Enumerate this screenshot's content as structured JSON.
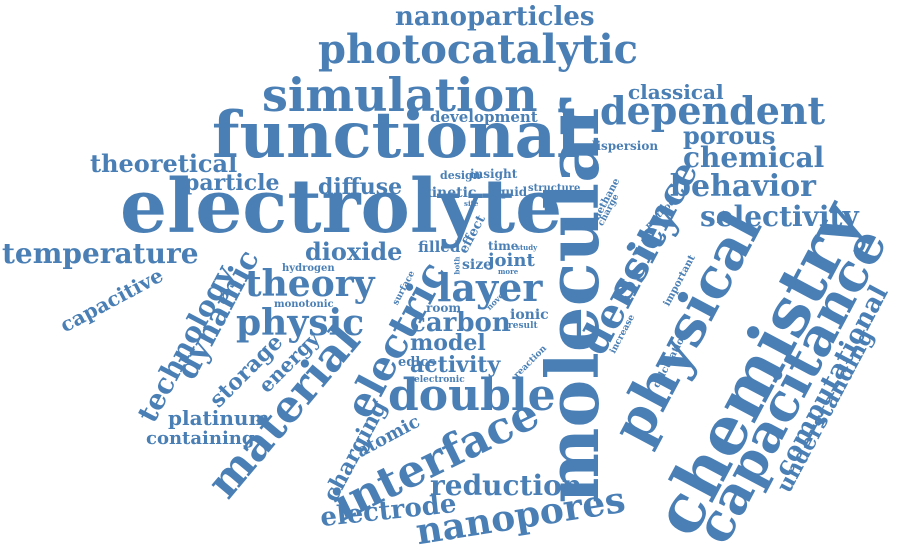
{
  "palette": {
    "word_color": "#4A7FB5",
    "background": "#ffffff"
  },
  "words": [
    {
      "id": "electrolyte",
      "text": "electrolyte"
    },
    {
      "id": "molecular",
      "text": "molecular"
    },
    {
      "id": "functional",
      "text": "functional"
    },
    {
      "id": "chemistry",
      "text": "chemistry"
    },
    {
      "id": "capacitance",
      "text": "capacitance"
    },
    {
      "id": "physical",
      "text": "physical"
    },
    {
      "id": "simulation",
      "text": "simulation"
    },
    {
      "id": "photocatalytic",
      "text": "photocatalytic"
    },
    {
      "id": "dependent",
      "text": "dependent"
    },
    {
      "id": "density",
      "text": "density"
    },
    {
      "id": "layer",
      "text": "layer"
    },
    {
      "id": "double",
      "text": "double"
    },
    {
      "id": "interface",
      "text": "interface"
    },
    {
      "id": "material",
      "text": "material"
    },
    {
      "id": "electric",
      "text": "electric"
    },
    {
      "id": "theory",
      "text": "theory"
    },
    {
      "id": "physic",
      "text": "physic"
    },
    {
      "id": "science",
      "text": "science"
    },
    {
      "id": "nanopores",
      "text": "nanopores"
    },
    {
      "id": "computational",
      "text": "computational"
    },
    {
      "id": "behavior",
      "text": "behavior"
    },
    {
      "id": "chemical",
      "text": "chemical"
    },
    {
      "id": "selectivity",
      "text": "selectivity"
    },
    {
      "id": "temperature",
      "text": "temperature"
    },
    {
      "id": "nanoparticles",
      "text": "nanoparticles"
    },
    {
      "id": "technology",
      "text": "technology"
    },
    {
      "id": "dynamic",
      "text": "dynamic"
    },
    {
      "id": "reduction",
      "text": "reduction"
    },
    {
      "id": "electrode",
      "text": "electrode"
    },
    {
      "id": "understanding",
      "text": "understanding"
    },
    {
      "id": "theoretical",
      "text": "theoretical"
    },
    {
      "id": "dioxide",
      "text": "dioxide"
    },
    {
      "id": "particle",
      "text": "particle"
    },
    {
      "id": "diffuse",
      "text": "diffuse"
    },
    {
      "id": "carbon",
      "text": "carbon"
    },
    {
      "id": "model",
      "text": "model"
    },
    {
      "id": "activity",
      "text": "activity"
    },
    {
      "id": "porous",
      "text": "porous"
    },
    {
      "id": "classical",
      "text": "classical"
    },
    {
      "id": "charging",
      "text": "charging"
    },
    {
      "id": "storage",
      "text": "storage"
    },
    {
      "id": "energy",
      "text": "energy"
    },
    {
      "id": "platinum",
      "text": "platinum"
    },
    {
      "id": "containing",
      "text": "containing"
    },
    {
      "id": "capacitive",
      "text": "capacitive"
    },
    {
      "id": "atomic",
      "text": "atomic"
    },
    {
      "id": "development",
      "text": "development"
    },
    {
      "id": "edlcs",
      "text": "edlcs"
    },
    {
      "id": "filled",
      "text": "filled"
    },
    {
      "id": "kinetic",
      "text": "kinetic"
    },
    {
      "id": "dispersion",
      "text": "dispersion"
    },
    {
      "id": "joint",
      "text": "joint"
    },
    {
      "id": "size",
      "text": "size"
    },
    {
      "id": "ionic",
      "text": "ionic"
    },
    {
      "id": "insight",
      "text": "insight"
    },
    {
      "id": "liquid",
      "text": "liquid"
    },
    {
      "id": "design",
      "text": "design"
    },
    {
      "id": "structure",
      "text": "structure"
    },
    {
      "id": "effect",
      "text": "effect"
    },
    {
      "id": "time",
      "text": "time"
    },
    {
      "id": "monotonic",
      "text": "monotonic"
    },
    {
      "id": "hydrogen",
      "text": "hydrogen"
    },
    {
      "id": "room",
      "text": "room"
    },
    {
      "id": "electronic",
      "text": "electronic"
    },
    {
      "id": "result",
      "text": "result"
    },
    {
      "id": "methane",
      "text": "methane"
    },
    {
      "id": "charge",
      "text": "charge"
    },
    {
      "id": "method",
      "text": "method"
    },
    {
      "id": "important",
      "text": "important"
    },
    {
      "id": "calculation",
      "text": "calculation"
    },
    {
      "id": "increase",
      "text": "increase"
    },
    {
      "id": "reaction",
      "text": "reaction"
    },
    {
      "id": "surface",
      "text": "surface"
    },
    {
      "id": "novel",
      "text": "novel"
    },
    {
      "id": "study",
      "text": "study"
    },
    {
      "id": "more",
      "text": "more"
    },
    {
      "id": "site",
      "text": "site"
    },
    {
      "id": "both",
      "text": "both"
    }
  ]
}
